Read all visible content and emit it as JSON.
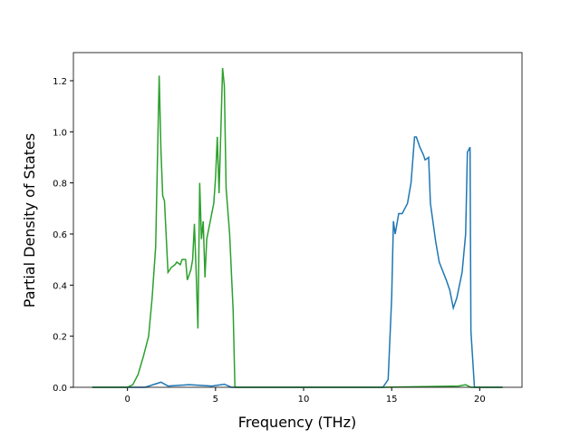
{
  "chart_data": {
    "type": "line",
    "x_label": "Frequency (THz)",
    "y_label": "Partial Density of States",
    "xlim": [
      -3.07,
      22.4
    ],
    "ylim": [
      0,
      1.31
    ],
    "xticks": [
      0,
      5,
      10,
      15,
      20
    ],
    "yticks": [
      {
        "value": 0,
        "label": "0.0"
      },
      {
        "value": 0.2,
        "label": "0.2"
      },
      {
        "value": 0.4,
        "label": "0.4"
      },
      {
        "value": 0.6,
        "label": "0.6"
      },
      {
        "value": 0.8,
        "label": "0.8"
      },
      {
        "value": 1.0,
        "label": "1.0"
      },
      {
        "value": 1.2,
        "label": "1.2"
      }
    ],
    "series": [
      {
        "color": "#1f77b4",
        "x": [
          -2,
          1.0,
          1.9,
          2.3,
          3.5,
          4.8,
          5.5,
          5.9,
          14.5,
          14.8,
          15.0,
          15.1,
          15.2,
          15.4,
          15.6,
          15.9,
          16.1,
          16.3,
          16.4,
          16.6,
          16.8,
          16.9,
          17.1,
          17.2,
          17.5,
          17.7,
          18.1,
          18.3,
          18.5,
          18.7,
          19.0,
          19.2,
          19.3,
          19.45,
          19.5,
          19.7,
          21.3
        ],
        "values": [
          0,
          0,
          0.02,
          0.005,
          0.01,
          0.005,
          0.012,
          0,
          0,
          0.03,
          0.35,
          0.65,
          0.6,
          0.68,
          0.68,
          0.72,
          0.8,
          0.98,
          0.98,
          0.94,
          0.91,
          0.89,
          0.9,
          0.72,
          0.57,
          0.49,
          0.42,
          0.38,
          0.31,
          0.35,
          0.45,
          0.6,
          0.92,
          0.94,
          0.22,
          0,
          0
        ]
      },
      {
        "color": "#2ca02c",
        "x": [
          -2,
          0,
          0.3,
          0.6,
          0.9,
          1.2,
          1.4,
          1.6,
          1.8,
          1.9,
          2.0,
          2.1,
          2.3,
          2.5,
          2.7,
          2.8,
          3.0,
          3.1,
          3.3,
          3.4,
          3.6,
          3.7,
          3.8,
          3.9,
          4.0,
          4.1,
          4.2,
          4.3,
          4.4,
          4.5,
          4.7,
          4.9,
          5.0,
          5.1,
          5.2,
          5.3,
          5.4,
          5.5,
          5.6,
          5.8,
          6.0,
          6.1,
          14.5,
          18.8,
          19.2,
          19.5,
          21.3
        ],
        "values": [
          0,
          0,
          0.01,
          0.05,
          0.12,
          0.2,
          0.35,
          0.55,
          1.22,
          0.93,
          0.75,
          0.73,
          0.45,
          0.47,
          0.48,
          0.49,
          0.48,
          0.5,
          0.5,
          0.42,
          0.46,
          0.5,
          0.64,
          0.45,
          0.23,
          0.8,
          0.58,
          0.65,
          0.43,
          0.58,
          0.65,
          0.72,
          0.82,
          0.98,
          0.76,
          1.0,
          1.25,
          1.18,
          0.78,
          0.6,
          0.3,
          0,
          0,
          0.005,
          0.01,
          0,
          0
        ]
      }
    ]
  }
}
